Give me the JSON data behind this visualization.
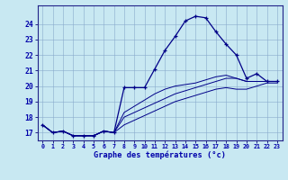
{
  "xlabel": "Graphe des températures (°c)",
  "hours": [
    0,
    1,
    2,
    3,
    4,
    5,
    6,
    7,
    8,
    9,
    10,
    11,
    12,
    13,
    14,
    15,
    16,
    17,
    18,
    19,
    20,
    21,
    22,
    23
  ],
  "temp_current": [
    17.5,
    17.0,
    17.1,
    16.8,
    16.8,
    16.8,
    17.1,
    17.0,
    19.9,
    19.9,
    19.9,
    21.1,
    22.3,
    23.2,
    24.2,
    24.5,
    24.4,
    23.5,
    22.7,
    22.0,
    20.5,
    20.8,
    20.3,
    20.3
  ],
  "temp_line2": [
    17.5,
    17.0,
    17.1,
    16.8,
    16.8,
    16.8,
    17.1,
    17.0,
    18.0,
    18.3,
    18.6,
    18.9,
    19.2,
    19.5,
    19.7,
    19.9,
    20.1,
    20.3,
    20.5,
    20.5,
    20.3,
    20.3,
    20.3,
    20.3
  ],
  "temp_line3": [
    17.5,
    17.0,
    17.1,
    16.8,
    16.8,
    16.8,
    17.1,
    17.0,
    18.3,
    18.7,
    19.1,
    19.5,
    19.8,
    20.0,
    20.1,
    20.2,
    20.4,
    20.6,
    20.7,
    20.5,
    20.3,
    20.3,
    20.3,
    20.3
  ],
  "temp_line4": [
    17.5,
    17.0,
    17.1,
    16.8,
    16.8,
    16.8,
    17.1,
    17.0,
    17.5,
    17.8,
    18.1,
    18.4,
    18.7,
    19.0,
    19.2,
    19.4,
    19.6,
    19.8,
    19.9,
    19.8,
    19.8,
    20.0,
    20.2,
    20.2
  ],
  "ylim": [
    16.5,
    25.2
  ],
  "yticks": [
    17,
    18,
    19,
    20,
    21,
    22,
    23,
    24
  ],
  "xlim": [
    -0.5,
    23.5
  ],
  "bg_color": "#c8e8f2",
  "grid_color": "#88aacc",
  "line_color": "#000088",
  "axis_color": "#222288",
  "tick_label_color": "#0000aa",
  "figsize": [
    3.2,
    2.0
  ],
  "dpi": 100
}
